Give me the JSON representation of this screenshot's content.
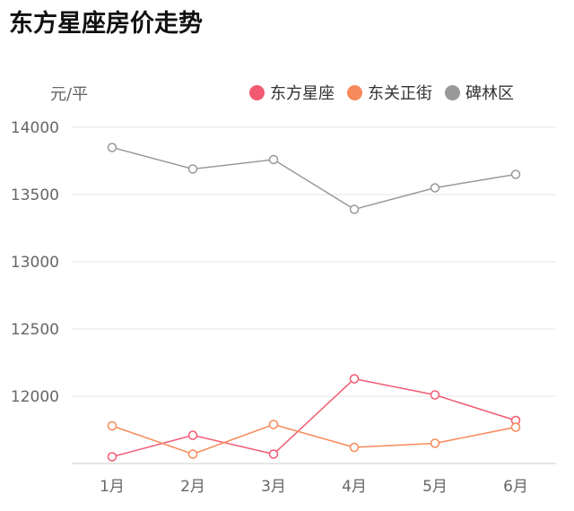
{
  "chart_data": {
    "type": "line",
    "title": "东方星座房价走势",
    "ylabel": "元/平",
    "categories": [
      "1月",
      "2月",
      "3月",
      "4月",
      "5月",
      "6月"
    ],
    "ylim": [
      11500,
      14000
    ],
    "yticks": [
      12000,
      12500,
      13000,
      13500,
      14000
    ],
    "legend_position": "top-right",
    "grid": true,
    "series": [
      {
        "name": "东方星座",
        "color": "#f25a72",
        "values": [
          11550,
          11710,
          11570,
          12130,
          12010,
          11820
        ]
      },
      {
        "name": "东关正街",
        "color": "#f7895a",
        "values": [
          11780,
          11570,
          11790,
          11620,
          11650,
          11770
        ]
      },
      {
        "name": "碑林区",
        "color": "#999999",
        "values": [
          13850,
          13690,
          13760,
          13390,
          13550,
          13650
        ]
      }
    ]
  }
}
